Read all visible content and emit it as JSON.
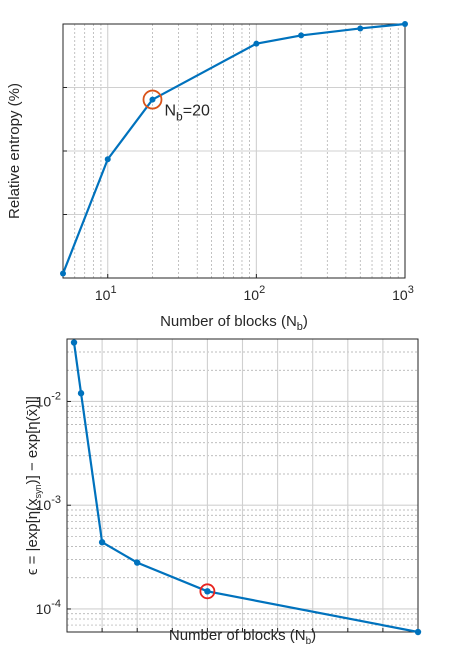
{
  "chart_data": [
    {
      "type": "line",
      "title": "",
      "xlabel": "Number of blocks (N_b)",
      "ylabel": "Relative entropy (%)",
      "xscale": "log",
      "xlim": [
        5,
        1000
      ],
      "ylim": [
        60,
        100
      ],
      "grid": true,
      "x": [
        5,
        10,
        20,
        100,
        200,
        500,
        1000
      ],
      "series": [
        {
          "values": [
            60.7,
            78.7,
            88.1,
            96.9,
            98.2,
            99.3,
            100
          ]
        }
      ],
      "xticks": [
        10,
        100,
        1000
      ],
      "xtick_labels": [
        {
          "base": "10",
          "exp": "1"
        },
        {
          "base": "10",
          "exp": "2"
        },
        {
          "base": "10",
          "exp": "3"
        }
      ],
      "yticks": [
        "60",
        "70",
        "80",
        "90",
        "100"
      ],
      "highlight": {
        "x": 20,
        "y": 88.1,
        "color": "#d95319"
      },
      "annotation": {
        "x": 20,
        "y": 88.1,
        "text": "N_b=20"
      },
      "line_color": "#0072bd"
    },
    {
      "type": "line",
      "title": "",
      "xlabel": "Number of blocks (N_b)",
      "ylabel": "ϵ = |exp[η(x_syn)] − exp[η(x̄)]|",
      "yscale": "log",
      "xlim": [
        0,
        50
      ],
      "ylim": [
        6e-05,
        0.04
      ],
      "grid": true,
      "x": [
        1,
        2,
        5,
        10,
        20,
        50
      ],
      "series": [
        {
          "values": [
            0.037,
            0.012,
            0.00044,
            0.00028,
            0.000148,
            6e-05
          ]
        }
      ],
      "xticks": [
        "5",
        "10",
        "15",
        "20",
        "25",
        "30",
        "35",
        "40",
        "45",
        "50"
      ],
      "ytick_labels": [
        {
          "base": "10",
          "exp": "-4"
        },
        {
          "base": "10",
          "exp": "-3"
        },
        {
          "base": "10",
          "exp": "-2"
        }
      ],
      "highlight": {
        "x": 20,
        "y": 0.000148,
        "color": "#e8231e"
      },
      "line_color": "#0072bd"
    }
  ]
}
